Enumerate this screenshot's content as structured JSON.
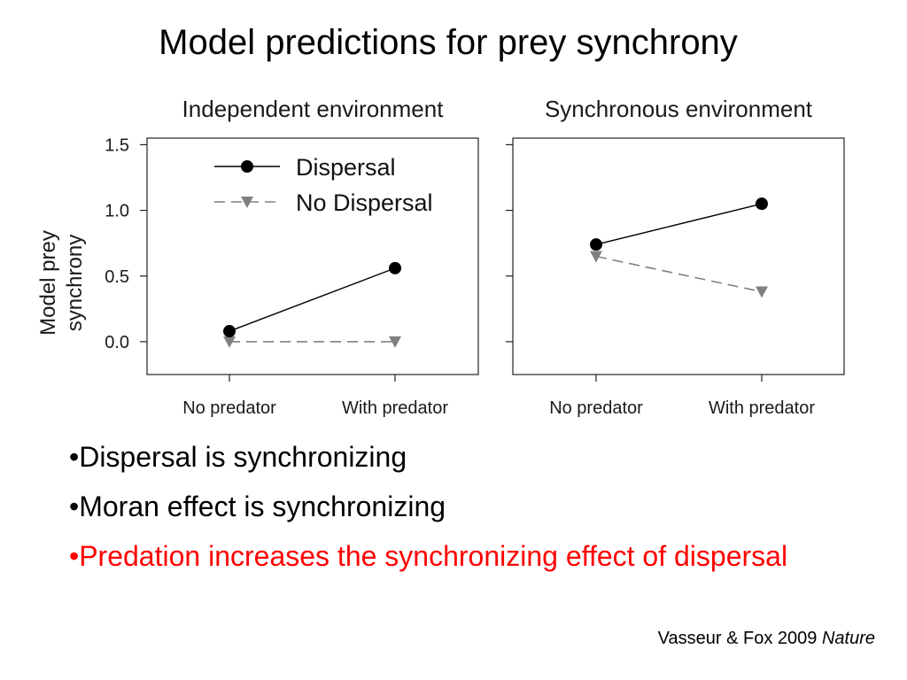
{
  "slide": {
    "title": "Model predictions for prey synchrony",
    "bullets": [
      "•Dispersal is synchronizing",
      "•Moran effect is synchronizing",
      "•Predation increases the synchronizing effect of dispersal"
    ],
    "citation": "Vasseur & Fox 2009",
    "citation_journal": "Nature"
  },
  "colors": {
    "dispersal": "#000000",
    "no_dispersal": "#808080",
    "highlight_text": "#ff0000"
  },
  "chart_data": [
    {
      "type": "line",
      "title": "Independent environment",
      "ylabel": "Model prey synchrony",
      "xlabel": "",
      "categories": [
        "No predator",
        "With predator"
      ],
      "ylim": [
        -0.25,
        1.55
      ],
      "yticks": [
        "0.0",
        "0.5",
        "1.0",
        "1.5"
      ],
      "ytick_values": [
        0.0,
        0.5,
        1.0,
        1.5
      ],
      "legend": "top-left",
      "grid": false,
      "series": [
        {
          "name": "Dispersal",
          "values": [
            0.08,
            0.56
          ],
          "marker": "circle",
          "line": "solid",
          "color": "#000000"
        },
        {
          "name": "No Dispersal",
          "values": [
            0.0,
            0.0
          ],
          "marker": "triangle-down",
          "line": "dashed",
          "color": "#808080"
        }
      ]
    },
    {
      "type": "line",
      "title": "Synchronous environment",
      "xlabel": "",
      "ylabel": "",
      "categories": [
        "No predator",
        "With predator"
      ],
      "ylim": [
        -0.25,
        1.55
      ],
      "grid": false,
      "series": [
        {
          "name": "Dispersal",
          "values": [
            0.74,
            1.05
          ],
          "marker": "circle",
          "line": "solid",
          "color": "#000000"
        },
        {
          "name": "No Dispersal",
          "values": [
            0.65,
            0.38
          ],
          "marker": "triangle-down",
          "line": "dashed",
          "color": "#808080"
        }
      ]
    }
  ]
}
